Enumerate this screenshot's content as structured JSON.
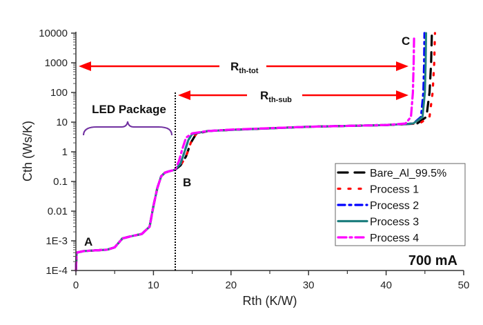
{
  "chart_data": {
    "type": "line",
    "title": "",
    "xlabel": "Rth (K/W)",
    "ylabel": "Cth (Ws/K)",
    "xlim": [
      0,
      50
    ],
    "ylim": [
      0.0001,
      10000
    ],
    "yscale": "log",
    "x_ticks": [
      0,
      10,
      20,
      30,
      40,
      50
    ],
    "x_tick_labels": [
      "0",
      "10",
      "20",
      "30",
      "40",
      "50"
    ],
    "y_ticks": [
      0.0001,
      0.001,
      0.01,
      0.1,
      1,
      10,
      100,
      1000,
      10000
    ],
    "y_tick_labels": [
      "1E-4",
      "1E-3",
      "0.01",
      "0.1",
      "1",
      "10",
      "100",
      "1000",
      "10000"
    ],
    "grid": false,
    "legend_position": "bottom-right",
    "series": [
      {
        "name": "Bare_Al_99.5%",
        "color": "#000000",
        "dash": "14,10",
        "x": [
          0,
          0.1,
          1,
          4,
          5,
          6,
          7,
          8.5,
          9.5,
          10,
          10.5,
          11,
          11.5,
          12,
          12.8,
          13.5,
          14.2,
          14.8,
          15.5,
          17,
          20,
          30,
          40,
          44,
          45.2,
          45.6,
          45.8,
          45.9
        ],
        "y": [
          0.0001,
          0.0004,
          0.00045,
          0.0005,
          0.0006,
          0.0012,
          0.0014,
          0.0017,
          0.003,
          0.015,
          0.06,
          0.15,
          0.2,
          0.22,
          0.25,
          0.35,
          0.7,
          2,
          4,
          5,
          5.5,
          7,
          8,
          9,
          15,
          100,
          1000,
          10000
        ]
      },
      {
        "name": "Process 1",
        "color": "#ff0000",
        "dash": "3,12",
        "x": [
          0,
          0.1,
          1,
          4,
          5,
          6,
          7,
          8.5,
          9.5,
          10,
          10.5,
          11,
          11.5,
          12,
          12.8,
          13.5,
          14.2,
          14.8,
          15.5,
          17,
          20,
          30,
          40,
          44.3,
          45.6,
          46,
          46.2,
          46.3
        ],
        "y": [
          0.0001,
          0.0004,
          0.00045,
          0.0005,
          0.0006,
          0.0012,
          0.0014,
          0.0017,
          0.003,
          0.015,
          0.06,
          0.15,
          0.2,
          0.22,
          0.25,
          0.35,
          0.7,
          2,
          4,
          5,
          5.5,
          7,
          8,
          9,
          15,
          100,
          1000,
          10000
        ]
      },
      {
        "name": "Process 2",
        "color": "#0000ff",
        "dash": "10,6,3,6",
        "x": [
          0,
          0.1,
          1,
          4,
          5,
          6,
          7,
          8.5,
          9.5,
          10,
          10.5,
          11,
          11.5,
          12,
          12.8,
          13.5,
          14,
          14.5,
          15,
          17,
          20,
          30,
          40,
          43.5,
          44.5,
          44.8,
          44.9,
          44.95
        ],
        "y": [
          0.0001,
          0.0004,
          0.00045,
          0.0005,
          0.0006,
          0.0012,
          0.0014,
          0.0017,
          0.003,
          0.015,
          0.06,
          0.15,
          0.2,
          0.22,
          0.25,
          0.4,
          1,
          2.5,
          4,
          5,
          5.5,
          7,
          8,
          9,
          15,
          100,
          1000,
          10000
        ]
      },
      {
        "name": "Process 3",
        "color": "#1f7f7f",
        "dash": "",
        "x": [
          0,
          0.1,
          1,
          4,
          5,
          6,
          7,
          8.5,
          9.5,
          10,
          10.5,
          11,
          11.5,
          12,
          12.8,
          13.5,
          14,
          14.5,
          15,
          17,
          20,
          30,
          40,
          43.5,
          44.7,
          45,
          45.1,
          45.15
        ],
        "y": [
          0.0001,
          0.0004,
          0.00045,
          0.0005,
          0.0006,
          0.0012,
          0.0014,
          0.0017,
          0.003,
          0.015,
          0.06,
          0.15,
          0.2,
          0.22,
          0.25,
          0.4,
          1,
          2.5,
          4,
          5,
          5.5,
          7,
          8,
          9,
          15,
          100,
          1000,
          10000
        ]
      },
      {
        "name": "Process 4",
        "color": "#ff00ff",
        "dash": "12,5,3,5",
        "x": [
          0,
          0.1,
          1,
          4,
          5,
          6,
          7,
          8.5,
          9.5,
          10,
          10.5,
          11,
          11.5,
          12,
          12.8,
          13.3,
          13.7,
          14.2,
          15,
          17,
          20,
          30,
          40,
          42.5,
          43.2,
          43.45,
          43.55,
          43.6
        ],
        "y": [
          0.0001,
          0.0004,
          0.00045,
          0.0005,
          0.0006,
          0.0012,
          0.0014,
          0.0017,
          0.003,
          0.015,
          0.06,
          0.15,
          0.2,
          0.22,
          0.25,
          0.5,
          1.2,
          3,
          4.2,
          5,
          5.6,
          7,
          8,
          9,
          15,
          100,
          1000,
          7000
        ]
      }
    ],
    "annotations": {
      "point_a": "A",
      "point_b": "B",
      "point_c": "C",
      "led_package": "LED Package",
      "rth_tot_main": "R",
      "rth_tot_sub": "th-tot",
      "rth_sub_main": "R",
      "rth_sub_sub": "th-sub",
      "current": "700 mA"
    },
    "annotation_colors": {
      "arrow": "#ff0000",
      "brace": "#7030a0",
      "divider": "#000000"
    }
  }
}
